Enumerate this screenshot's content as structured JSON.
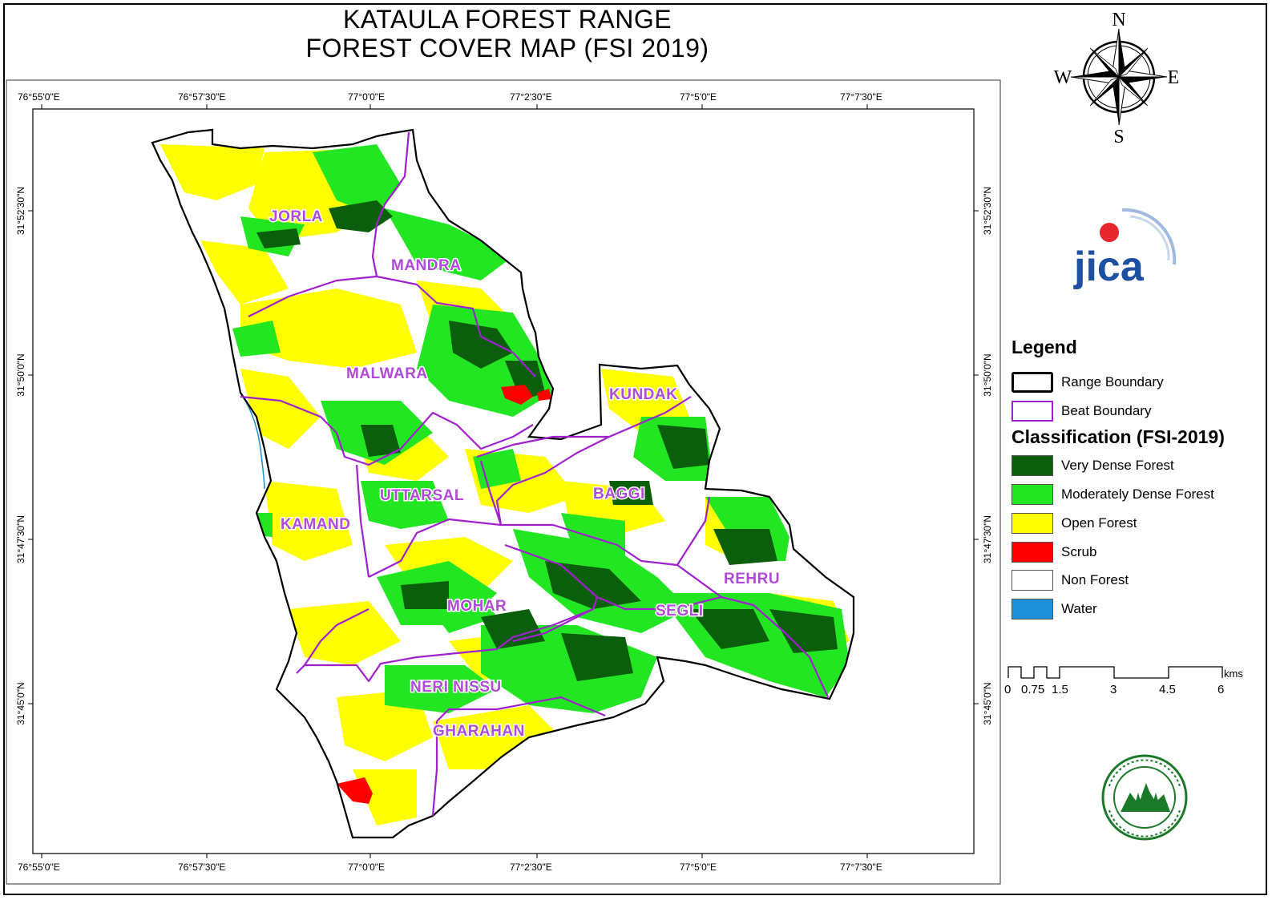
{
  "title": {
    "line1": "KATAULA FOREST RANGE",
    "line2": "FOREST COVER MAP (FSI 2019)"
  },
  "graticule": {
    "longitudes": [
      "76°55'0\"E",
      "76°57'30\"E",
      "77°0'0\"E",
      "77°2'30\"E",
      "77°5'0\"E",
      "77°7'30\"E"
    ],
    "latitudes": [
      "31°52'30\"N",
      "31°50'0\"N",
      "31°47'30\"N",
      "31°45'0\"N"
    ]
  },
  "north_arrow": {
    "n": "N",
    "s": "S",
    "e": "E",
    "w": "W"
  },
  "logo": {
    "text": "jica",
    "accent_color": "#e8262d",
    "brand_color": "#1f4fa0"
  },
  "beats": [
    {
      "name": "JORLA"
    },
    {
      "name": "MANDRA"
    },
    {
      "name": "MALWARA"
    },
    {
      "name": "KUNDAK"
    },
    {
      "name": "UTTARSAL"
    },
    {
      "name": "BAGGI"
    },
    {
      "name": "KAMAND"
    },
    {
      "name": "REHRU"
    },
    {
      "name": "MOHAR"
    },
    {
      "name": "SEGLI"
    },
    {
      "name": "NERI NISSU"
    },
    {
      "name": "GHARAHAN"
    }
  ],
  "legend": {
    "title": "Legend",
    "boundaries": [
      {
        "label": "Range Boundary",
        "color": "#000000"
      },
      {
        "label": "Beat Boundary",
        "color": "#a020d0"
      }
    ],
    "classification_title": "Classification (FSI-2019)",
    "classes": [
      {
        "label": "Very Dense Forest",
        "color": "#0b5e0b"
      },
      {
        "label": "Moderately Dense Forest",
        "color": "#22e622"
      },
      {
        "label": "Open Forest",
        "color": "#ffff00"
      },
      {
        "label": "Scrub",
        "color": "#ff0000"
      },
      {
        "label": "Non Forest",
        "color": "#ffffff"
      },
      {
        "label": "Water",
        "color": "#1e90d8"
      }
    ]
  },
  "scale_bar": {
    "ticks": [
      "0",
      "0.75",
      "1.5",
      "3",
      "4.5",
      "6"
    ],
    "unit": "kms"
  }
}
